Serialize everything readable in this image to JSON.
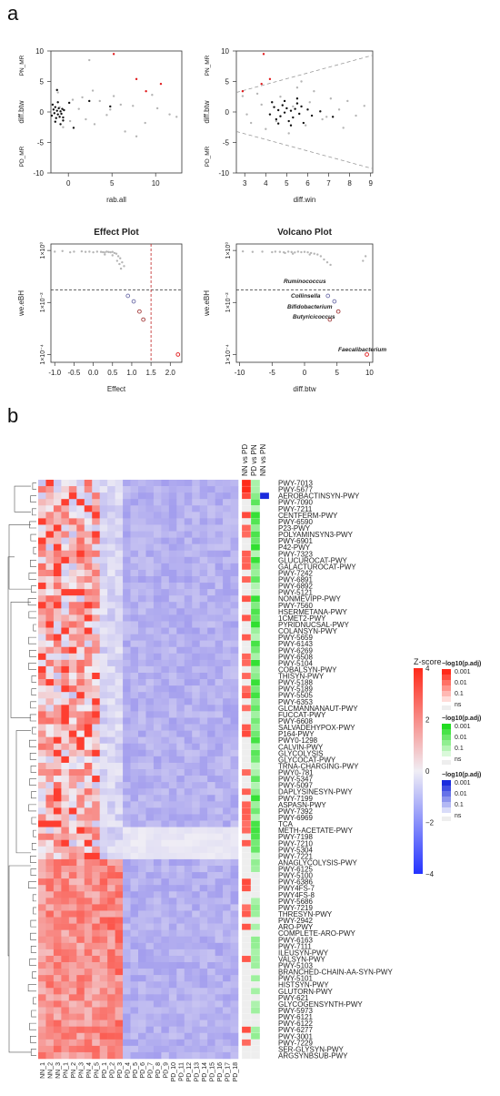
{
  "panel_labels": [
    "a",
    "b"
  ],
  "chart_data": [
    {
      "id": "scatter-rab-all",
      "type": "scatter",
      "title": "",
      "xlabel": "rab.all",
      "ylabel": "diff.btw",
      "y_top_label": "PN_MR",
      "y_bottom_label": "PD_MR",
      "xlim": [
        -2,
        13
      ],
      "ylim": [
        -10,
        10
      ],
      "xticks": [
        0,
        5,
        10
      ],
      "yticks": [
        -10,
        -5,
        0,
        5,
        10
      ],
      "series": [
        {
          "color": "#b5b5b5",
          "x": [
            -1.2,
            -0.6,
            0.5,
            1.2,
            2.0,
            2.8,
            3.6,
            4.4,
            5.2,
            6.5,
            7.4,
            8.8,
            10.2,
            11.6,
            -1.0,
            0.2,
            1.6,
            3.0,
            4.8,
            6.0,
            7.8,
            9.6,
            12.4,
            2.4
          ],
          "y": [
            3.2,
            -2.5,
            2.0,
            0.5,
            -1.2,
            3.5,
            1.8,
            -0.5,
            2.6,
            -3.2,
            1.0,
            -1.8,
            0.6,
            -0.4,
            0.8,
            -1.5,
            2.4,
            -2.0,
            0.4,
            1.2,
            -4.0,
            2.8,
            -0.8,
            8.5
          ]
        },
        {
          "color": "#111111",
          "x": [
            -1.9,
            -1.7,
            -1.6,
            -1.5,
            -1.4,
            -1.3,
            -1.2,
            -1.1,
            -1.0,
            -0.9,
            -0.8,
            -0.7,
            -0.6,
            -0.5,
            -1.8,
            -1.5,
            -1.2,
            -0.9,
            -0.6,
            0.1,
            0.6,
            4.8,
            2.4,
            -1.3
          ],
          "y": [
            -0.6,
            0.4,
            -0.2,
            0.8,
            -1.0,
            0.2,
            -0.4,
            0.6,
            -0.8,
            0.1,
            -0.3,
            0.5,
            -1.4,
            0.3,
            1.2,
            -1.6,
            1.6,
            -2.0,
            -0.9,
            1.5,
            -2.6,
            0.9,
            1.8,
            3.6
          ]
        },
        {
          "color": "#e0191b",
          "x": [
            5.2,
            7.8,
            8.9,
            10.6
          ],
          "y": [
            9.5,
            5.4,
            3.4,
            4.6
          ]
        }
      ]
    },
    {
      "id": "scatter-diff-win",
      "type": "scatter",
      "title": "",
      "xlabel": "diff.win",
      "ylabel": "diff.btw",
      "y_top_label": "PN_MR",
      "y_bottom_label": "PD_MR",
      "xlim": [
        2.6,
        9.1
      ],
      "ylim": [
        -10,
        10
      ],
      "xticks": [
        3,
        4,
        5,
        6,
        7,
        8,
        9
      ],
      "yticks": [
        -10,
        -5,
        0,
        5,
        10
      ],
      "series": [
        {
          "color": "#b5b5b5",
          "x": [
            2.9,
            3.3,
            3.6,
            4.0,
            4.3,
            4.7,
            5.1,
            5.5,
            5.9,
            6.3,
            6.7,
            7.1,
            7.5,
            7.9,
            8.3,
            8.7,
            3.1,
            3.8,
            4.5,
            5.3,
            6.1,
            6.9,
            7.7,
            5.7
          ],
          "y": [
            2.6,
            -1.8,
            3.0,
            -2.8,
            1.6,
            2.5,
            -3.5,
            4.0,
            -2.2,
            3.4,
            -1.2,
            2.2,
            0.4,
            1.8,
            -0.6,
            1.0,
            -0.4,
            1.2,
            -1.5,
            0.9,
            1.6,
            -0.8,
            -2.6,
            5.0
          ]
        },
        {
          "color": "#111111",
          "x": [
            4.2,
            4.4,
            4.5,
            4.6,
            4.7,
            4.8,
            4.9,
            5.0,
            5.1,
            5.2,
            5.3,
            5.4,
            5.5,
            5.6,
            5.7,
            5.8,
            6.0,
            6.2,
            4.3,
            4.6,
            4.9,
            5.2,
            5.5,
            6.6,
            7.2
          ],
          "y": [
            -0.4,
            0.8,
            -1.2,
            0.3,
            -0.7,
            1.1,
            -0.1,
            0.6,
            -1.5,
            0.2,
            -0.9,
            0.5,
            1.4,
            -0.3,
            0.9,
            -1.8,
            0.4,
            -0.6,
            1.6,
            -1.9,
            1.8,
            -2.2,
            2.2,
            0.1,
            -0.8
          ]
        },
        {
          "color": "#e0191b",
          "x": [
            2.9,
            3.9,
            4.2,
            3.8
          ],
          "y": [
            3.4,
            9.5,
            5.4,
            4.6
          ]
        }
      ]
    },
    {
      "id": "effect-plot",
      "type": "scatter",
      "title": "Effect Plot",
      "xlabel": "Effect",
      "ylabel": "we.eBH",
      "xlim": [
        -1.1,
        2.3
      ],
      "xticks": [
        "-1.0",
        "-0.5",
        "0.0",
        "0.5",
        "1.0",
        "1.5",
        "2.0"
      ],
      "y_scale": "log",
      "yticks": [
        "1×10⁰",
        "1×10⁻²",
        "1×10⁻⁴"
      ],
      "hline": 0.03,
      "vline": 1.5,
      "series": [
        {
          "color": "#b5b5b5",
          "x": [
            -1.0,
            -0.8,
            -0.6,
            -0.5,
            -0.3,
            -0.2,
            -0.1,
            0.0,
            0.1,
            0.2,
            0.25,
            0.3,
            0.35,
            0.4,
            0.45,
            0.5,
            0.55,
            0.6,
            0.65,
            0.7,
            0.75,
            0.8,
            0.3,
            0.5,
            0.62,
            0.68,
            0.72
          ],
          "y": [
            0.9,
            0.95,
            0.85,
            0.9,
            0.92,
            0.88,
            0.9,
            0.85,
            0.9,
            0.88,
            0.86,
            0.84,
            0.9,
            0.87,
            0.85,
            0.88,
            0.8,
            0.75,
            0.6,
            0.5,
            0.35,
            0.25,
            0.7,
            0.65,
            0.4,
            0.3,
            0.2
          ]
        },
        {
          "color": "#6c6ca8",
          "x": [
            0.9,
            1.05
          ],
          "y": [
            0.018,
            0.011
          ]
        },
        {
          "color": "#a33a3a",
          "x": [
            1.2,
            1.3
          ],
          "y": [
            0.0045,
            0.0022
          ]
        },
        {
          "color": "#e0191b",
          "x": [
            2.2
          ],
          "y": [
            0.0001
          ]
        }
      ]
    },
    {
      "id": "volcano-plot",
      "type": "scatter",
      "title": "Volcano Plot",
      "xlabel": "diff.btw",
      "ylabel": "we.eBH",
      "xlim": [
        -10.5,
        10.5
      ],
      "xticks": [
        -10,
        -5,
        0,
        5,
        10
      ],
      "y_scale": "log",
      "yticks": [
        "1×10⁰",
        "1×10⁻²",
        "1×10⁻⁴"
      ],
      "hline": 0.03,
      "series": [
        {
          "color": "#b5b5b5",
          "x": [
            -9.5,
            -8.0,
            -6.5,
            -5.0,
            -4.5,
            -3.8,
            -3.2,
            -2.5,
            -2.0,
            -1.5,
            -1.0,
            -0.5,
            0.0,
            0.5,
            1.0,
            1.5,
            2.0,
            2.5,
            3.0,
            3.5,
            4.0,
            9.0,
            9.4,
            -3.0,
            -1.8,
            0.8
          ],
          "y": [
            0.92,
            0.88,
            0.9,
            0.86,
            0.9,
            0.88,
            0.85,
            0.9,
            0.87,
            0.84,
            0.9,
            0.86,
            0.88,
            0.85,
            0.8,
            0.75,
            0.7,
            0.6,
            0.45,
            0.35,
            0.28,
            0.4,
            0.6,
            0.8,
            0.75,
            0.7
          ]
        },
        {
          "color": "#6c6ca8",
          "x": [
            3.6,
            4.6
          ],
          "y": [
            0.018,
            0.011
          ]
        },
        {
          "color": "#a33a3a",
          "x": [
            5.2,
            3.9
          ],
          "y": [
            0.0045,
            0.0022
          ]
        },
        {
          "color": "#e0191b",
          "x": [
            9.6
          ],
          "y": [
            0.0001
          ]
        }
      ],
      "annotations": [
        "Ruminococcus",
        "Collinsella",
        "Bifidobacterium",
        "Butyricicoccus",
        "Faecalibacterium"
      ]
    },
    {
      "id": "heatmap",
      "type": "heatmap",
      "title": "",
      "columns": [
        "NN_1",
        "NN_2",
        "NN_3",
        "PN_1",
        "PN_2",
        "PN_3",
        "PN_4",
        "PN_5",
        "PD_1",
        "PD_2",
        "PD_3",
        "PD_4",
        "PD_5",
        "PD_6",
        "PD_7",
        "PD_8",
        "PD_9",
        "PD_10",
        "PD_11",
        "PD_12",
        "PD_13",
        "PD_14",
        "PD_15",
        "PD_16",
        "PD_17",
        "PD_18"
      ],
      "rows": [
        "PWY-7013",
        "PWY-5677",
        "AEROBACTINSYN-PWY",
        "PWY-7090",
        "PWY-7211",
        "CENTFERM-PWY",
        "PWY-6590",
        "P23-PWY",
        "POLYAMINSYN3-PWY",
        "PWY-6901",
        "P42-PWY",
        "PWY-7323",
        "GLUCUROCAT-PWY",
        "GALACTUROCAT-PWY",
        "PWY-7242",
        "PWY-6891",
        "PWY-6892",
        "PWY-5121",
        "NONMEVIPP-PWY",
        "PWY-7560",
        "HSERMETANA-PWY",
        "1CMET2-PWY",
        "PYRIDNUCSAL-PWY",
        "COLANSYN-PWY",
        "PWY-5659",
        "PWY-6143",
        "PWY-6269",
        "PWY-6508",
        "PWY-5104",
        "COBALSYN-PWY",
        "THISYN-PWY",
        "PWY-5188",
        "PWY-5189",
        "PWY-5505",
        "PWY-6353",
        "GLCMANNANAUT-PWY",
        "FUCCAT-PWY",
        "PWY-6608",
        "SALVADEHYPOX-PWY",
        "P164-PWY",
        "PWY0-1298",
        "CALVIN-PWY",
        "GLYCOLYSIS",
        "GLYCOCAT-PWY",
        "TRNA-CHARGING-PWY",
        "PWY0-781",
        "PWY-5347",
        "PWY-5097",
        "DAPLYSINESYN-PWY",
        "PWY-7199",
        "ASPASN-PWY",
        "PWY-7392",
        "PWY-6969",
        "TCA",
        "METH-ACETATE-PWY",
        "PWY-7198",
        "PWY-7210",
        "PWY-5304",
        "PWY-7221",
        "ANAGLYCOLYSIS-PWY",
        "PWY-6125",
        "PWY-5100",
        "PWY-6386",
        "PWY4FS-7",
        "PWY4FS-8",
        "PWY-5686",
        "PWY-7219",
        "THRESYN-PWY",
        "PWY-2942",
        "ARO-PWY",
        "COMPLETE-ARO-PWY",
        "PWY-6163",
        "PWY-7111",
        "ILEUSYN-PWY",
        "VALSYN-PWY",
        "PWY-5103",
        "BRANCHED-CHAIN-AA-SYN-PWY",
        "PWY-5101",
        "HISTSYN-PWY",
        "GLUTORN-PWY",
        "PWY-621",
        "GLYCOGENSYNTH-PWY",
        "PWY-5973",
        "PWY-6121",
        "PWY-6122",
        "PWY-6277",
        "PWY-3001",
        "PWY-7229",
        "SER-GLYSYN-PWY",
        "ARGSYNBSUB-PWY"
      ],
      "comparisons": [
        "NN vs PD",
        "PD vs PN",
        "NN vs PN"
      ],
      "colorbar": {
        "title": "Z-score",
        "ticks": [
          "4",
          "2",
          "0",
          "−2",
          "−4"
        ],
        "low": "#2433ff",
        "mid": "#f0eef5",
        "high": "#ff2a1a"
      },
      "significance_legends": [
        {
          "title": "−log10(p.adj)",
          "color": "#ff2a1a",
          "ticks": [
            "0.001",
            "0.01",
            "0.1",
            "ns"
          ]
        },
        {
          "title": "−log10(p.adj)",
          "color": "#22dd22",
          "ticks": [
            "0.001",
            "0.01",
            "0.1",
            "ns"
          ]
        },
        {
          "title": "−log10(p.adj)",
          "color": "#1a2bdd",
          "ticks": [
            "0.001",
            "0.01",
            "0.1",
            "ns"
          ]
        }
      ]
    }
  ]
}
